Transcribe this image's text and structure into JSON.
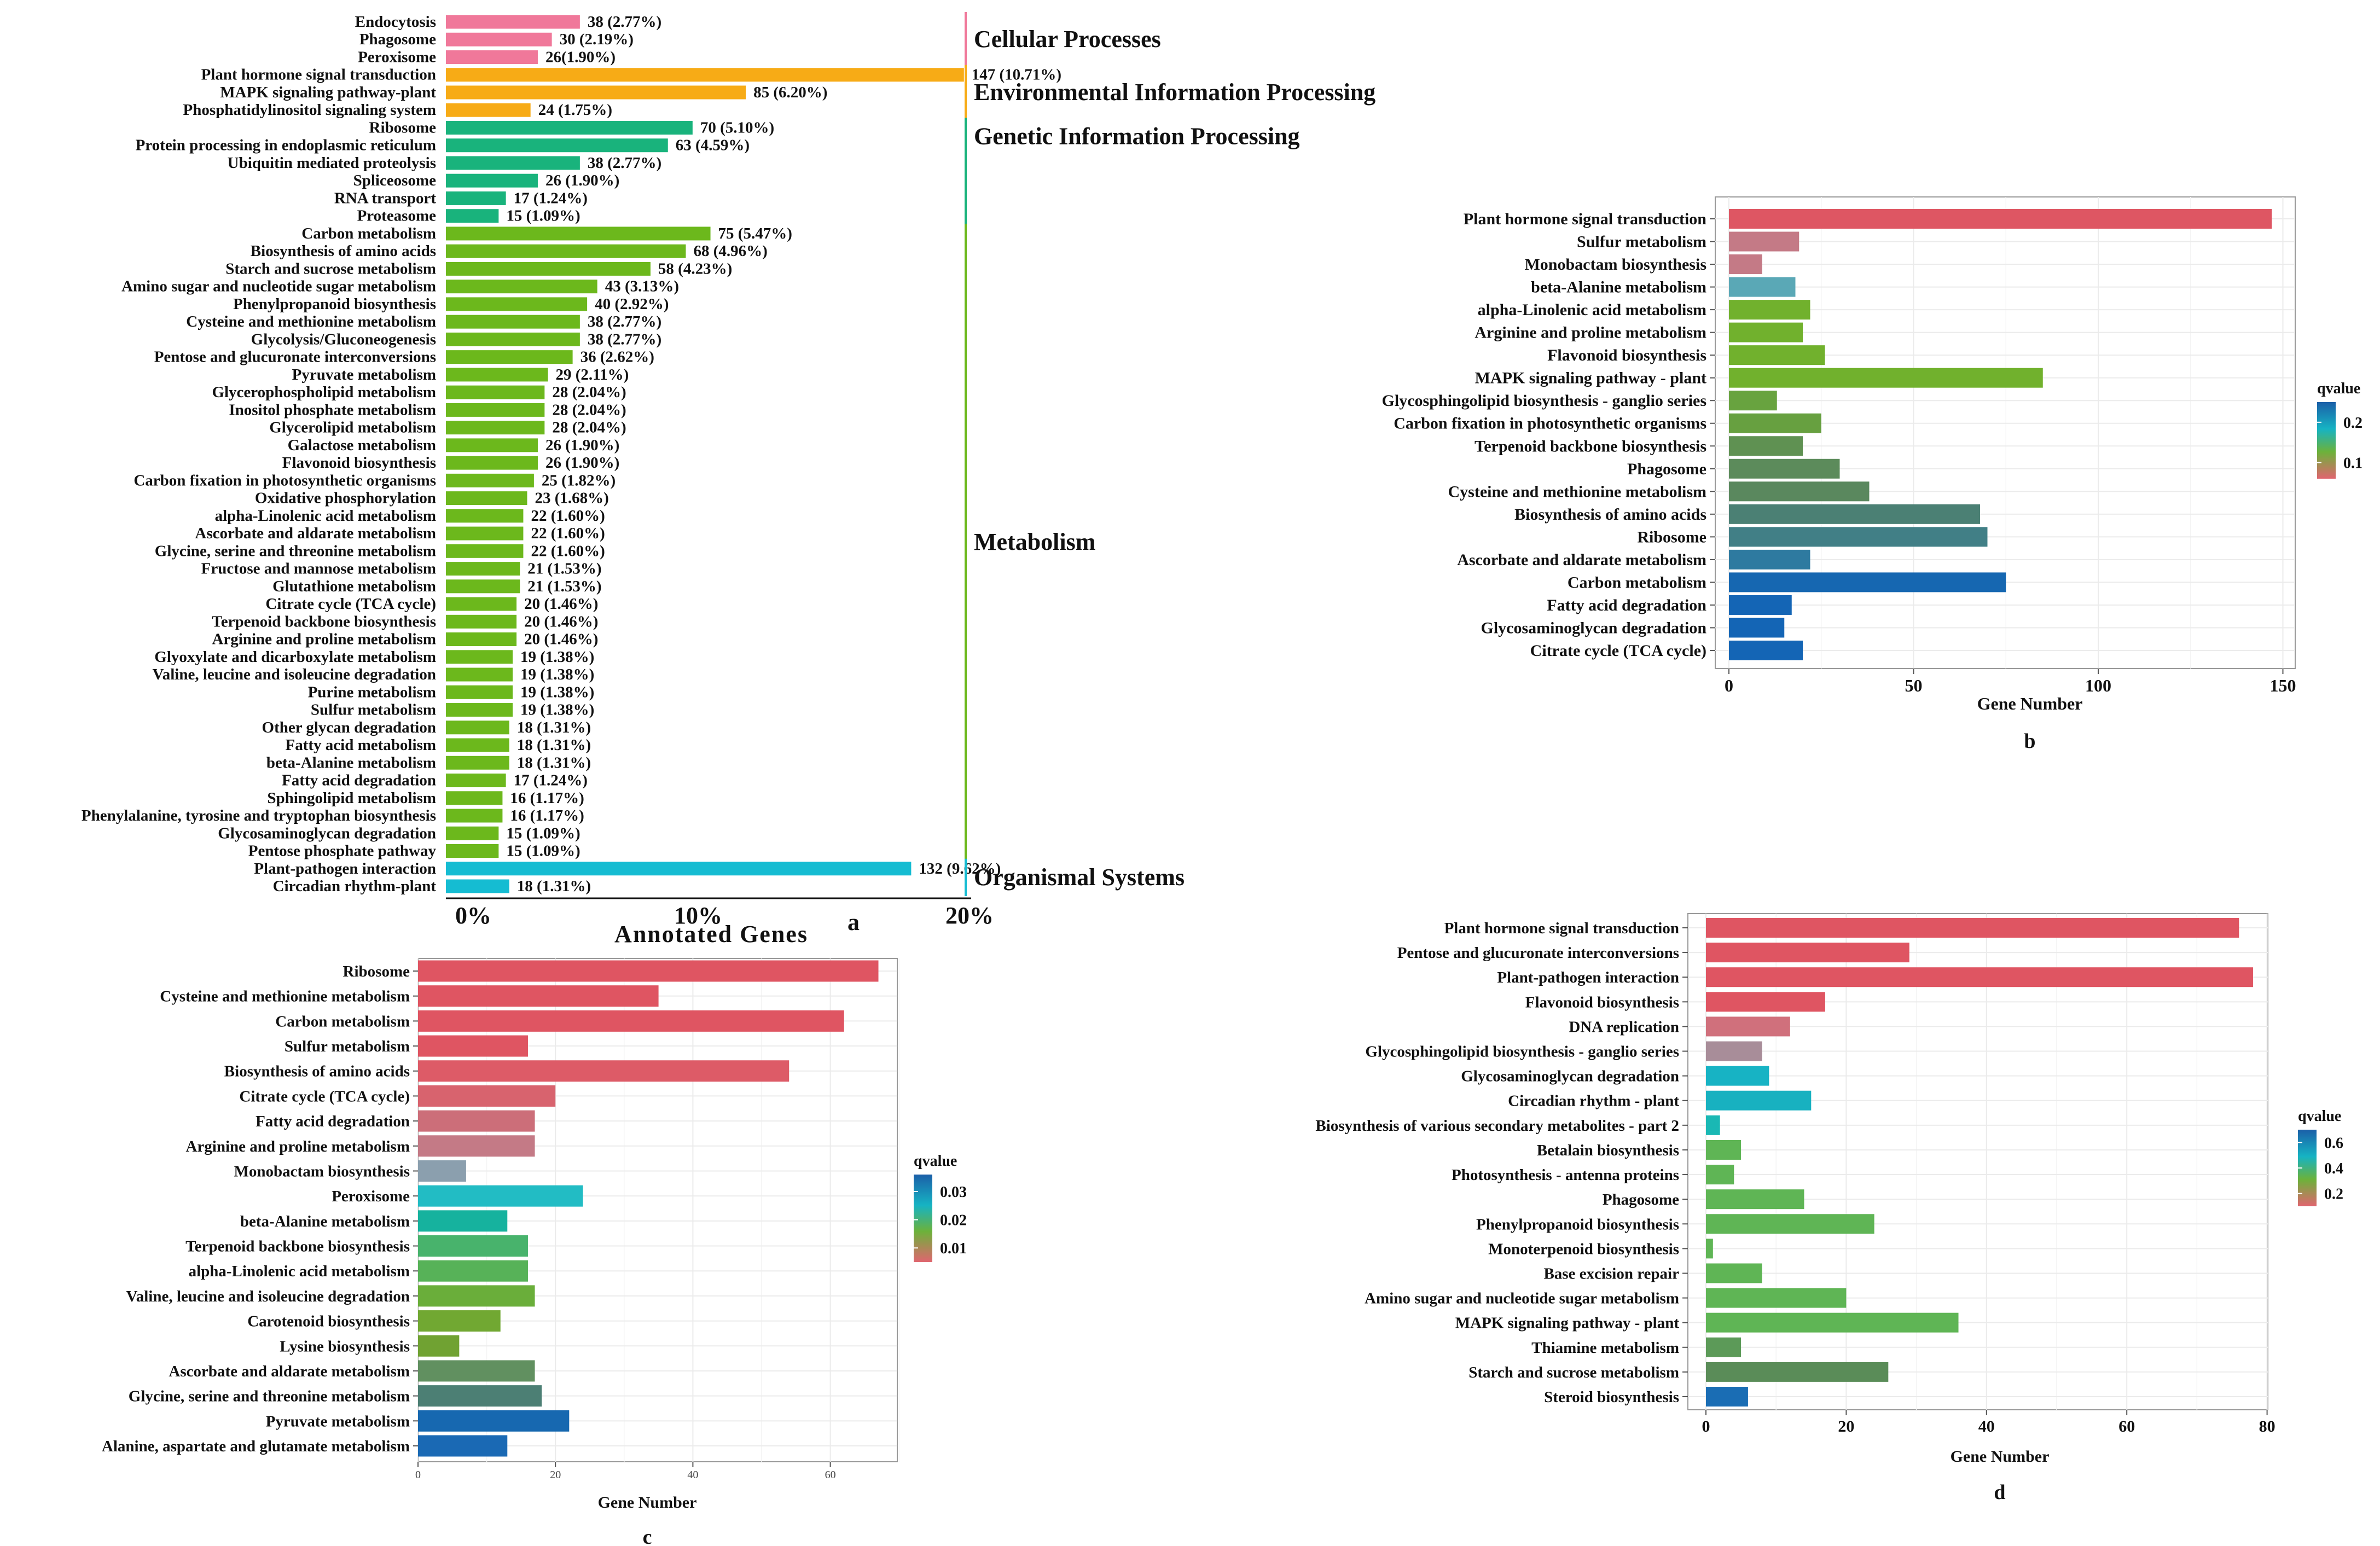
{
  "chart_data": [
    {
      "id": "a",
      "type": "bar",
      "orientation": "horizontal",
      "panel_label": "a",
      "xlabel": "Annotated Genes",
      "xticks": [
        "0%",
        "10%",
        "20%"
      ],
      "xlim": [
        0,
        20
      ],
      "colors": {
        "Cellular Processes": "#f0789a",
        "Environmental Information Processing": "#f7ab16",
        "Genetic Information Processing": "#19b37c",
        "Metabolism": "#6cb81c",
        "Organismal Systems": "#15bcd2"
      },
      "categories": [
        {
          "name": "Cellular Processes",
          "items": [
            {
              "label": "Endocytosis",
              "count": 38,
              "pct_text": "38 (2.77%)",
              "pct": 2.77
            },
            {
              "label": "Phagosome",
              "count": 30,
              "pct_text": "30 (2.19%)",
              "pct": 2.19
            },
            {
              "label": "Peroxisome",
              "count": 26,
              "pct_text": "26(1.90%)",
              "pct": 1.9
            }
          ]
        },
        {
          "name": "Environmental Information Processing",
          "items": [
            {
              "label": "Plant hormone signal transduction",
              "count": 147,
              "pct_text": "147 (10.71%)",
              "pct": 10.71
            },
            {
              "label": "MAPK signaling pathway-plant",
              "count": 85,
              "pct_text": "85 (6.20%)",
              "pct": 6.2
            },
            {
              "label": "Phosphatidylinositol signaling system",
              "count": 24,
              "pct_text": "24 (1.75%)",
              "pct": 1.75
            }
          ]
        },
        {
          "name": "Genetic Information Processing",
          "items": [
            {
              "label": "Ribosome",
              "count": 70,
              "pct_text": "70 (5.10%)",
              "pct": 5.1
            },
            {
              "label": "Protein processing in endoplasmic reticulum",
              "count": 63,
              "pct_text": "63 (4.59%)",
              "pct": 4.59
            },
            {
              "label": "Ubiquitin mediated proteolysis",
              "count": 38,
              "pct_text": "38 (2.77%)",
              "pct": 2.77
            },
            {
              "label": "Spliceosome",
              "count": 26,
              "pct_text": "26 (1.90%)",
              "pct": 1.9
            },
            {
              "label": "RNA transport",
              "count": 17,
              "pct_text": "17 (1.24%)",
              "pct": 1.24
            },
            {
              "label": "Proteasome",
              "count": 15,
              "pct_text": "15 (1.09%)",
              "pct": 1.09
            }
          ]
        },
        {
          "name": "Metabolism",
          "items": [
            {
              "label": "Carbon metabolism",
              "count": 75,
              "pct_text": "75 (5.47%)",
              "pct": 5.47
            },
            {
              "label": "Biosynthesis of amino acids",
              "count": 68,
              "pct_text": "68 (4.96%)",
              "pct": 4.96
            },
            {
              "label": "Starch and sucrose metabolism",
              "count": 58,
              "pct_text": "58 (4.23%)",
              "pct": 4.23
            },
            {
              "label": "Amino sugar and nucleotide sugar metabolism",
              "count": 43,
              "pct_text": "43 (3.13%)",
              "pct": 3.13
            },
            {
              "label": "Phenylpropanoid biosynthesis",
              "count": 40,
              "pct_text": "40 (2.92%)",
              "pct": 2.92
            },
            {
              "label": "Cysteine and methionine metabolism",
              "count": 38,
              "pct_text": "38 (2.77%)",
              "pct": 2.77
            },
            {
              "label": "Glycolysis/Gluconeogenesis",
              "count": 38,
              "pct_text": "38 (2.77%)",
              "pct": 2.77
            },
            {
              "label": "Pentose and glucuronate interconversions",
              "count": 36,
              "pct_text": "36 (2.62%)",
              "pct": 2.62
            },
            {
              "label": "Pyruvate metabolism",
              "count": 29,
              "pct_text": "29 (2.11%)",
              "pct": 2.11
            },
            {
              "label": "Glycerophospholipid metabolism",
              "count": 28,
              "pct_text": "28 (2.04%)",
              "pct": 2.04
            },
            {
              "label": "Inositol phosphate metabolism",
              "count": 28,
              "pct_text": "28 (2.04%)",
              "pct": 2.04
            },
            {
              "label": "Glycerolipid metabolism",
              "count": 28,
              "pct_text": "28 (2.04%)",
              "pct": 2.04
            },
            {
              "label": "Galactose metabolism",
              "count": 26,
              "pct_text": "26 (1.90%)",
              "pct": 1.9
            },
            {
              "label": "Flavonoid biosynthesis",
              "count": 26,
              "pct_text": "26 (1.90%)",
              "pct": 1.9
            },
            {
              "label": "Carbon fixation in photosynthetic organisms",
              "count": 25,
              "pct_text": "25 (1.82%)",
              "pct": 1.82
            },
            {
              "label": "Oxidative phosphorylation",
              "count": 23,
              "pct_text": "23 (1.68%)",
              "pct": 1.68
            },
            {
              "label": "alpha-Linolenic acid metabolism",
              "count": 22,
              "pct_text": "22 (1.60%)",
              "pct": 1.6
            },
            {
              "label": "Ascorbate and aldarate metabolism",
              "count": 22,
              "pct_text": "22 (1.60%)",
              "pct": 1.6
            },
            {
              "label": "Glycine, serine and threonine metabolism",
              "count": 22,
              "pct_text": "22 (1.60%)",
              "pct": 1.6
            },
            {
              "label": "Fructose and mannose metabolism",
              "count": 21,
              "pct_text": "21 (1.53%)",
              "pct": 1.53
            },
            {
              "label": "Glutathione metabolism",
              "count": 21,
              "pct_text": "21 (1.53%)",
              "pct": 1.53
            },
            {
              "label": "Citrate cycle (TCA cycle)",
              "count": 20,
              "pct_text": "20 (1.46%)",
              "pct": 1.46
            },
            {
              "label": "Terpenoid backbone biosynthesis",
              "count": 20,
              "pct_text": "20 (1.46%)",
              "pct": 1.46
            },
            {
              "label": "Arginine and proline metabolism",
              "count": 20,
              "pct_text": "20 (1.46%)",
              "pct": 1.46
            },
            {
              "label": "Glyoxylate and dicarboxylate metabolism",
              "count": 19,
              "pct_text": "19 (1.38%)",
              "pct": 1.38
            },
            {
              "label": "Valine,  leucine and isoleucine degradation",
              "count": 19,
              "pct_text": "19 (1.38%)",
              "pct": 1.38
            },
            {
              "label": "Purine metabolism",
              "count": 19,
              "pct_text": "19 (1.38%)",
              "pct": 1.38
            },
            {
              "label": "Sulfur metabolism",
              "count": 19,
              "pct_text": "19 (1.38%)",
              "pct": 1.38
            },
            {
              "label": "Other glycan degradation",
              "count": 18,
              "pct_text": "18 (1.31%)",
              "pct": 1.31
            },
            {
              "label": "Fatty acid metabolism",
              "count": 18,
              "pct_text": "18 (1.31%)",
              "pct": 1.31
            },
            {
              "label": "beta-Alanine metabolism",
              "count": 18,
              "pct_text": "18 (1.31%)",
              "pct": 1.31
            },
            {
              "label": "Fatty acid degradation",
              "count": 17,
              "pct_text": "17 (1.24%)",
              "pct": 1.24
            },
            {
              "label": "Sphingolipid metabolism",
              "count": 16,
              "pct_text": "16 (1.17%)",
              "pct": 1.17
            },
            {
              "label": "Phenylalanine, tyrosine and tryptophan biosynthesis",
              "count": 16,
              "pct_text": "16 (1.17%)",
              "pct": 1.17
            },
            {
              "label": "Glycosaminoglycan degradation",
              "count": 15,
              "pct_text": "15 (1.09%)",
              "pct": 1.09
            },
            {
              "label": "Pentose phosphate pathway",
              "count": 15,
              "pct_text": "15 (1.09%)",
              "pct": 1.09
            }
          ]
        },
        {
          "name": "Organismal Systems",
          "items": [
            {
              "label": "Plant-pathogen interaction",
              "count": 132,
              "pct_text": "132 (9.62%)",
              "pct": 9.62
            },
            {
              "label": "Circadian rhythm-plant",
              "count": 18,
              "pct_text": "18 (1.31%)",
              "pct": 1.31
            }
          ]
        }
      ]
    },
    {
      "id": "b",
      "type": "bar",
      "orientation": "horizontal",
      "panel_label": "b",
      "xlabel": "Gene Number",
      "xlim": [
        0,
        150
      ],
      "xticks": [
        "0",
        "50",
        "100",
        "150"
      ],
      "xtick_values": [
        0,
        50,
        100,
        150
      ],
      "legend": {
        "title": "qvalue",
        "labels": [
          "0.2",
          "0.1"
        ],
        "label_values": [
          0.2,
          0.1
        ],
        "range": [
          0.06,
          0.25
        ]
      },
      "categories": [
        "Plant hormone signal transduction",
        "Sulfur metabolism",
        "Monobactam biosynthesis",
        "beta-Alanine metabolism",
        "alpha-Linolenic acid metabolism",
        "Arginine and proline metabolism",
        "Flavonoid biosynthesis",
        "MAPK signaling pathway - plant",
        "Glycosphingolipid biosynthesis - ganglio series",
        "Carbon fixation in photosynthetic organisms",
        "Terpenoid backbone biosynthesis",
        "Phagosome",
        "Cysteine and methionine metabolism",
        "Biosynthesis of amino acids",
        "Ribosome",
        "Ascorbate and aldarate metabolism",
        "Carbon metabolism",
        "Fatty acid degradation",
        "Glycosaminoglycan degradation",
        "Citrate cycle (TCA cycle)"
      ],
      "values": [
        147,
        19,
        9,
        18,
        22,
        20,
        26,
        85,
        13,
        25,
        20,
        30,
        38,
        68,
        70,
        22,
        75,
        17,
        15,
        20
      ],
      "colors": [
        "#de5663",
        "#c47a86",
        "#c47a86",
        "#5aa8b6",
        "#71b12d",
        "#71b12d",
        "#71b12d",
        "#71b12d",
        "#68a33f",
        "#67a040",
        "#5f9152",
        "#5c8b5b",
        "#5a885e",
        "#4b8074",
        "#417f86",
        "#2e7aa0",
        "#1667b1",
        "#1465b5",
        "#1465b5",
        "#1465b5"
      ]
    },
    {
      "id": "c",
      "type": "bar",
      "orientation": "horizontal",
      "panel_label": "c",
      "xlabel": "Gene Number",
      "xlim": [
        0,
        70
      ],
      "xticks": [
        "0",
        "20",
        "40",
        "60"
      ],
      "xtick_values": [
        0,
        20,
        40,
        60
      ],
      "legend": {
        "title": "qvalue",
        "labels": [
          "0.03",
          "0.02",
          "0.01"
        ],
        "label_values": [
          0.03,
          0.02,
          0.01
        ],
        "range": [
          0.005,
          0.036
        ]
      },
      "categories": [
        "Ribosome",
        "Cysteine and methionine metabolism",
        "Carbon metabolism",
        "Sulfur metabolism",
        "Biosynthesis of amino acids",
        "Citrate cycle (TCA cycle)",
        "Fatty acid degradation",
        "Arginine and proline metabolism",
        "Monobactam biosynthesis",
        "Peroxisome",
        "beta-Alanine metabolism",
        "Terpenoid backbone biosynthesis",
        "alpha-Linolenic acid metabolism",
        "Valine, leucine and isoleucine degradation",
        "Carotenoid biosynthesis",
        "Lysine biosynthesis",
        "Ascorbate and aldarate metabolism",
        "Glycine, serine and threonine metabolism",
        "Pyruvate metabolism",
        "Alanine, aspartate and glutamate metabolism"
      ],
      "values": [
        67,
        35,
        62,
        16,
        54,
        20,
        17,
        17,
        7,
        24,
        13,
        16,
        16,
        17,
        12,
        6,
        17,
        18,
        22,
        13
      ],
      "colors": [
        "#df5562",
        "#df5562",
        "#df5562",
        "#df5562",
        "#dd5b67",
        "#d8636e",
        "#cc6e79",
        "#c47a86",
        "#8b9fae",
        "#22bcc4",
        "#16b29e",
        "#48b36c",
        "#57b258",
        "#6aae3a",
        "#71a832",
        "#70a232",
        "#619060",
        "#4c7f74",
        "#1768b0",
        "#1a69b4"
      ]
    },
    {
      "id": "d",
      "type": "bar",
      "orientation": "horizontal",
      "panel_label": "d",
      "xlabel": "Gene Number",
      "xlim": [
        0,
        80
      ],
      "xticks": [
        "0",
        "20",
        "40",
        "60",
        "80"
      ],
      "xtick_values": [
        0,
        20,
        40,
        60,
        80
      ],
      "legend": {
        "title": "qvalue",
        "labels": [
          "0.6",
          "0.4",
          "0.2"
        ],
        "label_values": [
          0.6,
          0.4,
          0.2
        ],
        "range": [
          0.1,
          0.7
        ]
      },
      "categories": [
        "Plant hormone signal transduction",
        "Pentose and glucuronate interconversions",
        "Plant-pathogen interaction",
        "Flavonoid biosynthesis",
        "DNA replication",
        "Glycosphingolipid biosynthesis - ganglio series",
        "Glycosaminoglycan degradation",
        "Circadian rhythm - plant",
        "Biosynthesis of various secondary metabolites - part 2",
        "Betalain biosynthesis",
        "Photosynthesis - antenna proteins",
        "Phagosome",
        "Phenylpropanoid biosynthesis",
        "Monoterpenoid biosynthesis",
        "Base excision repair",
        "Amino sugar and nucleotide sugar metabolism",
        "MAPK signaling pathway - plant",
        "Thiamine metabolism",
        "Starch and sucrose metabolism",
        "Steroid biosynthesis"
      ],
      "values": [
        76,
        29,
        78,
        17,
        12,
        8,
        9,
        15,
        2,
        5,
        4,
        14,
        24,
        1,
        8,
        20,
        36,
        5,
        26,
        6
      ],
      "colors": [
        "#df5562",
        "#df5562",
        "#df5562",
        "#df5562",
        "#d0707c",
        "#a88d99",
        "#17b3c4",
        "#18b1c0",
        "#1ab8b4",
        "#5fb555",
        "#5fb555",
        "#5fb555",
        "#5fb555",
        "#5fb555",
        "#5fb555",
        "#5fb555",
        "#5fb555",
        "#5c9a58",
        "#5a8c58",
        "#1a6db4"
      ]
    }
  ]
}
